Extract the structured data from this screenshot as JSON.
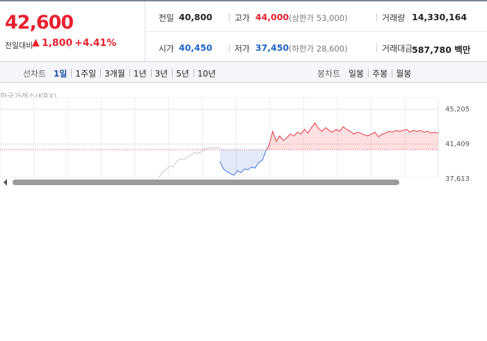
{
  "price": {
    "current": "42,600",
    "change_label": "전일대비",
    "change": "1,800",
    "change_rate": "+4.41%"
  },
  "summary": [
    {
      "label": "전일",
      "value": "40,800"
    },
    {
      "label": "고가",
      "value": "44,000",
      "note": "(상한가 53,000)"
    },
    {
      "label": "거래량",
      "value": "14,330,164"
    },
    {
      "label": "시가",
      "value": "40,450"
    },
    {
      "label": "저가",
      "value": "37,450",
      "note": "(하한가 28,600)"
    },
    {
      "label": "거래대금",
      "value": "587,780 백만"
    }
  ],
  "tabs": {
    "line_label": "선차트",
    "line": [
      "1일",
      "1주일",
      "3개월",
      "1년",
      "3년",
      "5년",
      "10년"
    ],
    "candle_label": "봉차트",
    "candle": [
      "일봉",
      "주봉",
      "월봉"
    ]
  },
  "chart_data": {
    "type": "line",
    "source": "한국거래소(KRX)",
    "ylim": [
      37613,
      46496
    ],
    "yticks": [
      {
        "value": 45205,
        "label": "45,205"
      },
      {
        "value": 41409,
        "label": "41,409"
      },
      {
        "value": 37613,
        "label": "37,613"
      }
    ],
    "baseline": 40800,
    "grid": true,
    "series": [
      {
        "color": "#c4c4c4",
        "values": [
          37700,
          38300,
          38600,
          39000,
          38900,
          39500,
          39800,
          39700,
          40000,
          40200,
          40500,
          40400,
          40600,
          40900,
          41000,
          41000,
          41000,
          41000
        ]
      },
      {
        "color_up": "#e8323c",
        "color_down": "#3a72d8",
        "values": [
          39500,
          38700,
          38400,
          38200,
          38000,
          38500,
          38300,
          38700,
          38600,
          38900,
          38800,
          39400,
          39600,
          40600,
          41300,
          42800,
          41700,
          42300,
          41800,
          42100,
          42500,
          42300,
          42700,
          42500,
          43000,
          42600,
          43200,
          43700,
          43100,
          42800,
          43200,
          42900,
          42700,
          43000,
          42800,
          43300,
          43000,
          42800,
          42500,
          42700,
          42600,
          42400,
          42300,
          42500,
          42700,
          42200,
          42500,
          42600,
          42800,
          42700,
          42900,
          42800,
          42900,
          43000,
          42700,
          42900,
          42800,
          42900,
          42700,
          42800,
          42600,
          42700,
          42600
        ]
      }
    ]
  }
}
